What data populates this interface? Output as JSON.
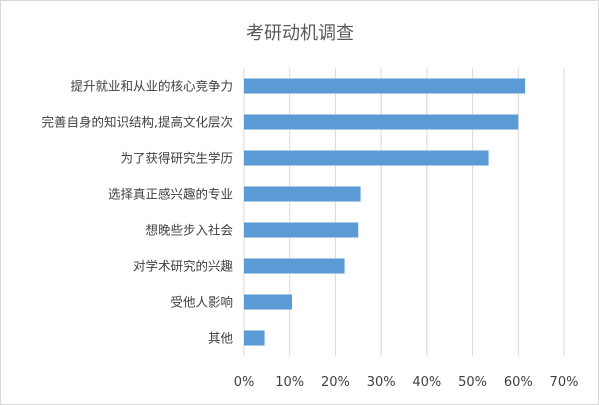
{
  "chart_data": {
    "type": "bar",
    "orientation": "horizontal",
    "title": "考研动机调查",
    "categories": [
      "提升就业和从业的核心竞争力",
      "完善自身的知识结构,提高文化层次",
      "为了获得研究生学历",
      "选择真正感兴趣的专业",
      "想晚些步入社会",
      "对学术研究的兴趣",
      "受他人影响",
      "其他"
    ],
    "values": [
      61.5,
      60,
      53.5,
      25.5,
      25,
      22,
      10.5,
      4.5
    ],
    "xlim": [
      0,
      70
    ],
    "x_ticks": [
      "0%",
      "10%",
      "20%",
      "30%",
      "40%",
      "50%",
      "60%",
      "70%"
    ],
    "grid": true,
    "legend": "none",
    "bar_color": "#5b9bd5",
    "grid_color": "#d9d9d9"
  }
}
